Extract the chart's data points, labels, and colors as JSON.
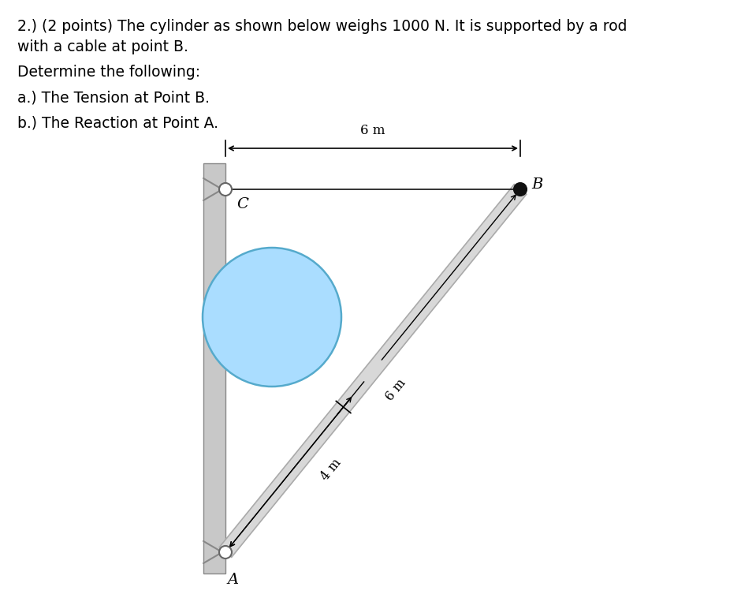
{
  "title_text": "2.) (2 points) The cylinder as shown below weighs 1000 N. It is supported by a rod\nwith a cable at point B.",
  "subtext1": "Determine the following:",
  "subtext2": "a.) The Tension at Point B.",
  "subtext3": "b.) The Reaction at Point A.",
  "bg_color": "#ffffff",
  "wall_color": "#c8c8c8",
  "rod_color": "#d8d8d8",
  "rod_edge_color": "#aaaaaa",
  "cable_color": "#222222",
  "cylinder_fill": "#aaddff",
  "cylinder_stroke": "#55aacc",
  "dim_6m_horiz": "6 m",
  "dim_rod_label": "6 m",
  "dim_lower_label": "4 m",
  "label_A": "A",
  "label_B": "B",
  "label_C": "C"
}
